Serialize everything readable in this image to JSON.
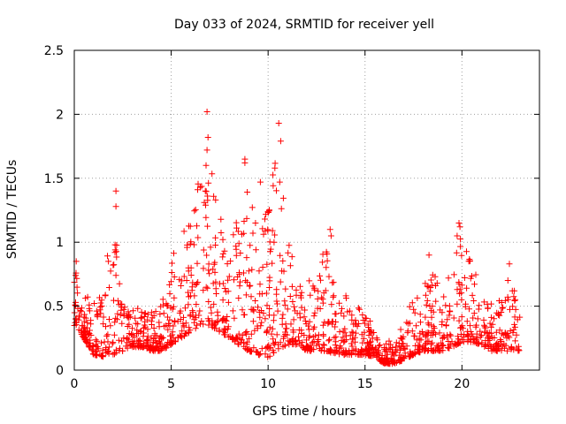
{
  "chart_data": {
    "type": "scatter",
    "title": "Day 033 of 2024, SRMTID for receiver yell",
    "xlabel": "GPS time / hours",
    "ylabel": "SRMTID / TECUs",
    "xlim": [
      0,
      24
    ],
    "ylim": [
      0,
      2.5
    ],
    "grid": true,
    "marker": "+",
    "marker_color": "#ff0000",
    "xticks": [
      0,
      5,
      10,
      15,
      20
    ],
    "xtick_labels": [
      "0",
      "5",
      "10",
      "15",
      "20"
    ],
    "yticks": [
      0,
      0.5,
      1,
      1.5,
      2,
      2.5
    ],
    "ytick_labels": [
      "0",
      "0.5",
      "1",
      "1.5",
      "2",
      "2.5"
    ],
    "envelope": {
      "x": [
        0,
        0.5,
        1,
        1.5,
        2,
        2.5,
        3,
        3.5,
        4,
        4.5,
        5,
        5.5,
        6,
        6.5,
        7,
        7.5,
        8,
        8.5,
        9,
        9.5,
        10,
        10.5,
        11,
        11.5,
        12,
        12.5,
        13,
        13.5,
        14,
        14.5,
        15,
        15.5,
        16,
        16.5,
        17,
        17.5,
        18,
        18.5,
        19,
        19.5,
        20,
        20.5,
        21,
        21.5,
        22,
        22.5,
        23
      ],
      "low": [
        0.35,
        0.25,
        0.12,
        0.1,
        0.12,
        0.15,
        0.18,
        0.18,
        0.15,
        0.15,
        0.2,
        0.25,
        0.3,
        0.35,
        0.35,
        0.3,
        0.25,
        0.2,
        0.15,
        0.12,
        0.1,
        0.15,
        0.2,
        0.2,
        0.15,
        0.15,
        0.15,
        0.12,
        0.12,
        0.12,
        0.12,
        0.1,
        0.05,
        0.05,
        0.08,
        0.12,
        0.15,
        0.15,
        0.15,
        0.18,
        0.22,
        0.22,
        0.2,
        0.15,
        0.15,
        0.15,
        0.15
      ],
      "high": [
        0.85,
        0.65,
        0.6,
        0.7,
        1.4,
        0.55,
        0.5,
        0.5,
        0.5,
        0.55,
        0.9,
        1.05,
        1.3,
        1.6,
        2.02,
        1.4,
        1.2,
        1.25,
        1.65,
        1.2,
        1.48,
        1.93,
        1.4,
        0.8,
        0.7,
        0.75,
        1.1,
        0.6,
        0.6,
        0.55,
        0.5,
        0.3,
        0.22,
        0.25,
        0.4,
        0.65,
        0.75,
        0.8,
        0.7,
        0.85,
        1.15,
        0.9,
        0.7,
        0.6,
        0.6,
        0.85,
        0.45
      ]
    },
    "point_count": 1500,
    "notable_points": [
      {
        "x": 0.1,
        "y": 0.85
      },
      {
        "x": 2.15,
        "y": 1.4
      },
      {
        "x": 2.15,
        "y": 1.28
      },
      {
        "x": 2.1,
        "y": 0.92
      },
      {
        "x": 6.85,
        "y": 2.02
      },
      {
        "x": 6.9,
        "y": 1.82
      },
      {
        "x": 6.85,
        "y": 1.72
      },
      {
        "x": 6.8,
        "y": 1.6
      },
      {
        "x": 8.8,
        "y": 1.65
      },
      {
        "x": 8.8,
        "y": 1.62
      },
      {
        "x": 10.55,
        "y": 1.93
      },
      {
        "x": 10.65,
        "y": 1.79
      },
      {
        "x": 10.35,
        "y": 1.58
      },
      {
        "x": 10.6,
        "y": 1.47
      },
      {
        "x": 9.6,
        "y": 1.47
      },
      {
        "x": 13.2,
        "y": 1.1
      },
      {
        "x": 13.25,
        "y": 1.05
      },
      {
        "x": 19.85,
        "y": 1.15
      },
      {
        "x": 19.9,
        "y": 1.12
      },
      {
        "x": 19.75,
        "y": 1.05
      },
      {
        "x": 22.45,
        "y": 0.83
      },
      {
        "x": 18.3,
        "y": 0.9
      }
    ]
  }
}
